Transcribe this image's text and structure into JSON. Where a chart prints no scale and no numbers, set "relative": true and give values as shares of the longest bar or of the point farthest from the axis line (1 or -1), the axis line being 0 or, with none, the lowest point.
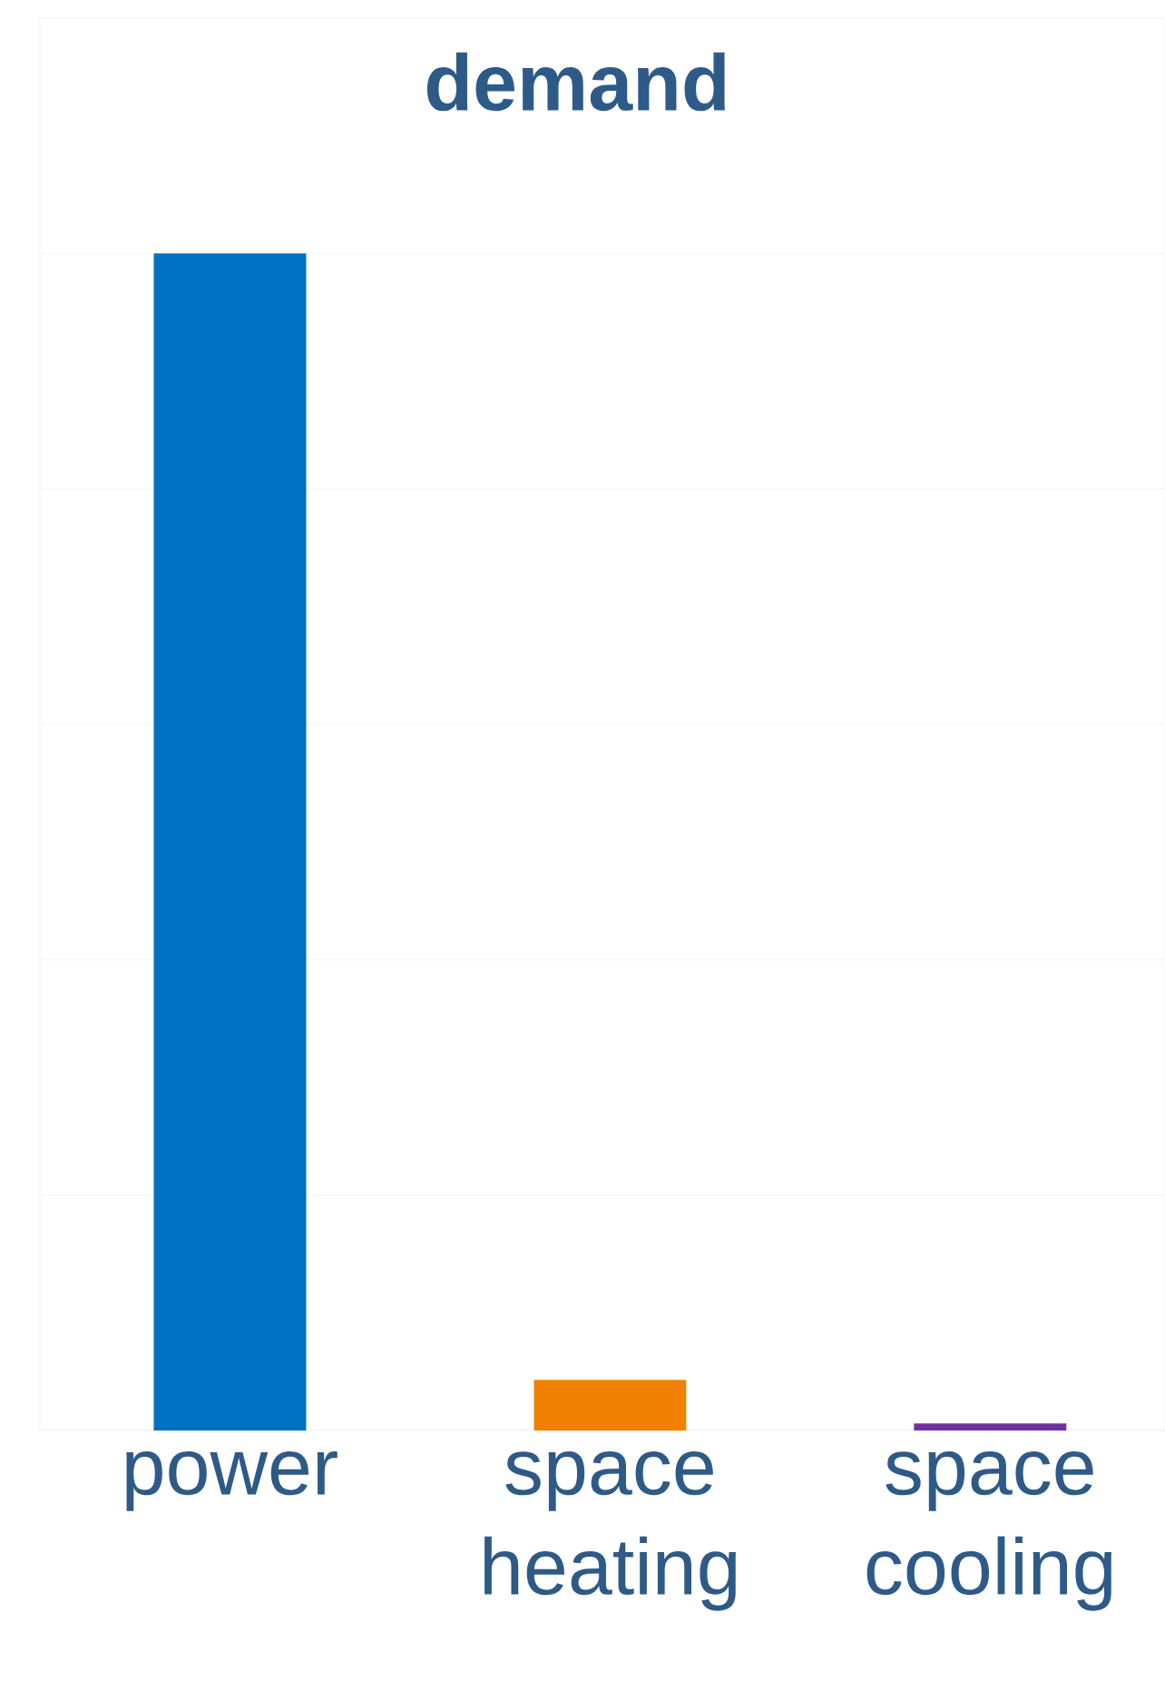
{
  "chart_data": {
    "type": "bar",
    "title": "demand",
    "relative": true,
    "grid": "y",
    "categories": [
      "power",
      "space heating",
      "space cooling"
    ],
    "values": [
      1,
      0.043,
      0.006
    ],
    "colors": [
      "#0070c0",
      "#f08000",
      "#7030a0"
    ]
  }
}
